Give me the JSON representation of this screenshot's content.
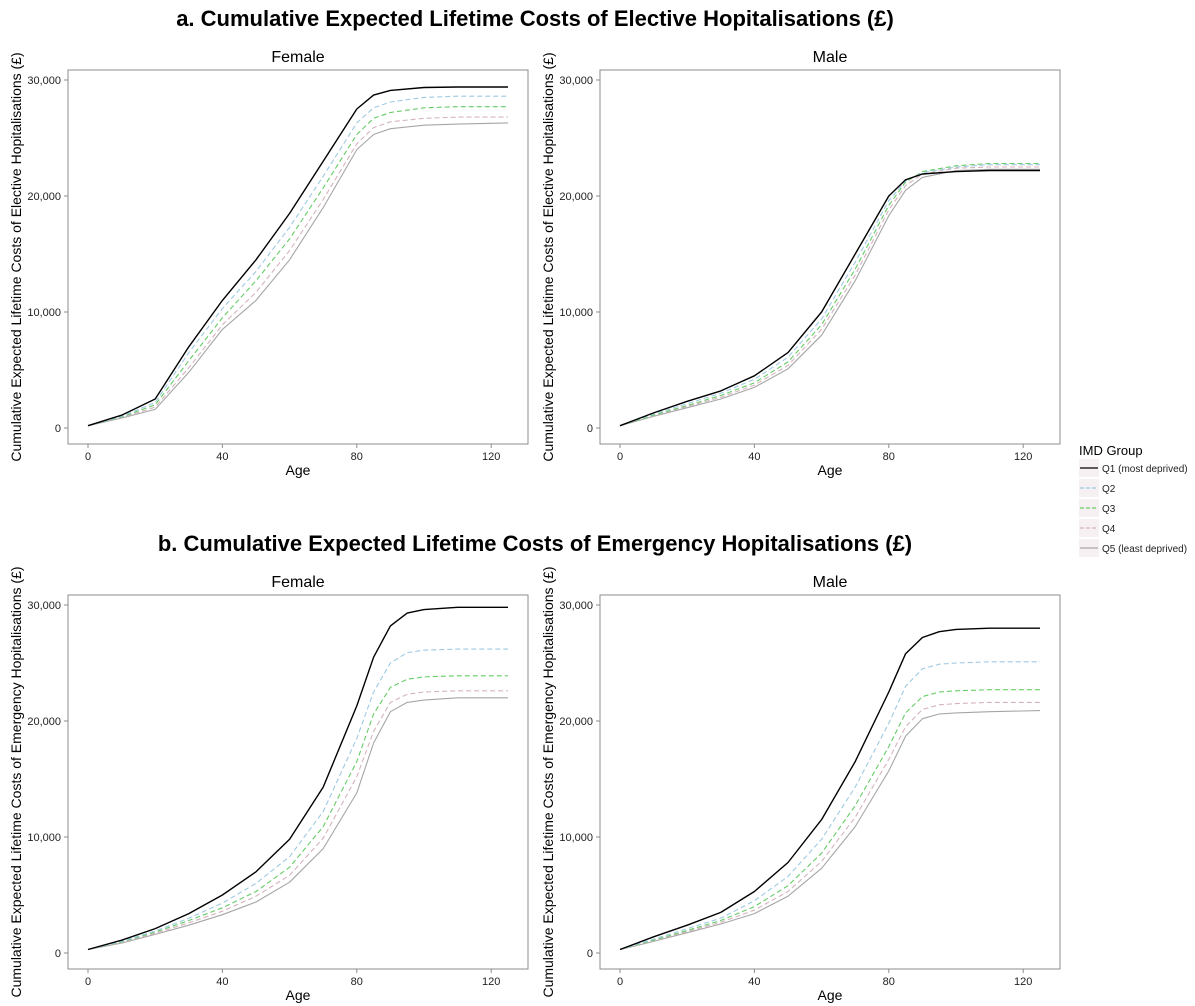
{
  "figure": {
    "title_a": "a. Cumulative Expected Lifetime Costs of Elective Hopitalisations (£)",
    "title_b": "b. Cumulative Expected Lifetime Costs of Emergency Hopitalisations (£)"
  },
  "legend": {
    "title": "IMD Group",
    "items": [
      {
        "label": "Q1 (most deprived)",
        "color": "#000000",
        "dash": "solid"
      },
      {
        "label": "Q2",
        "color": "#9ecae1",
        "dash": "dashed"
      },
      {
        "label": "Q3",
        "color": "#66cc66",
        "dash": "dashed"
      },
      {
        "label": "Q4",
        "color": "#d4b3bd",
        "dash": "dashed"
      },
      {
        "label": "Q5 (least deprived)",
        "color": "#a6a6a6",
        "dash": "solid"
      }
    ]
  },
  "chart_data": [
    {
      "type": "line",
      "title": "Female",
      "panel_group": "a",
      "xlabel": "Age",
      "ylabel": "Cumulative Expected Lifetime Costs of Elective Hopitalisations (£)",
      "xlim": [
        0,
        125
      ],
      "ylim": [
        0,
        30000
      ],
      "xticks": [
        0,
        40,
        80,
        120
      ],
      "xtick_labels": [
        "0",
        "40",
        "80",
        "120"
      ],
      "yticks": [
        0,
        10000,
        20000,
        30000
      ],
      "ytick_labels": [
        "0",
        "10,000",
        "20,000",
        "30,000"
      ],
      "grid": false,
      "x": [
        0,
        10,
        20,
        30,
        40,
        50,
        60,
        70,
        80,
        85,
        90,
        100,
        110,
        125
      ],
      "series": [
        {
          "name": "Q1 (most deprived)",
          "values": [
            200,
            1100,
            2500,
            7000,
            11000,
            14500,
            18500,
            23000,
            27500,
            28700,
            29100,
            29350,
            29400,
            29400
          ]
        },
        {
          "name": "Q2",
          "values": [
            200,
            1000,
            2200,
            6500,
            10300,
            13500,
            17300,
            21700,
            26300,
            27600,
            28100,
            28500,
            28600,
            28600
          ]
        },
        {
          "name": "Q3",
          "values": [
            200,
            950,
            2000,
            5800,
            9500,
            12700,
            16300,
            20700,
            25300,
            26700,
            27200,
            27600,
            27700,
            27700
          ]
        },
        {
          "name": "Q4",
          "values": [
            200,
            900,
            1800,
            5200,
            8900,
            11700,
            15300,
            19700,
            24500,
            25900,
            26400,
            26700,
            26800,
            26800
          ]
        },
        {
          "name": "Q5 (least deprived)",
          "values": [
            200,
            850,
            1600,
            4800,
            8500,
            11000,
            14500,
            19000,
            24000,
            25300,
            25800,
            26100,
            26200,
            26300
          ]
        }
      ]
    },
    {
      "type": "line",
      "title": "Male",
      "panel_group": "a",
      "xlabel": "Age",
      "ylabel": "Cumulative Expected Lifetime Costs of Elective Hopitalisations (£)",
      "xlim": [
        0,
        125
      ],
      "ylim": [
        0,
        30000
      ],
      "xticks": [
        0,
        40,
        80,
        120
      ],
      "xtick_labels": [
        "0",
        "40",
        "80",
        "120"
      ],
      "yticks": [
        0,
        10000,
        20000,
        30000
      ],
      "ytick_labels": [
        "0",
        "10,000",
        "20,000",
        "30,000"
      ],
      "grid": false,
      "x": [
        0,
        10,
        20,
        30,
        40,
        50,
        60,
        70,
        80,
        85,
        90,
        100,
        110,
        125
      ],
      "series": [
        {
          "name": "Q1 (most deprived)",
          "values": [
            200,
            1300,
            2300,
            3200,
            4500,
            6500,
            10000,
            15000,
            20000,
            21400,
            21900,
            22100,
            22200,
            22200
          ]
        },
        {
          "name": "Q2",
          "values": [
            200,
            1200,
            2100,
            3000,
            4200,
            6100,
            9400,
            14300,
            19600,
            21300,
            22000,
            22500,
            22700,
            22700
          ]
        },
        {
          "name": "Q3",
          "values": [
            200,
            1100,
            1950,
            2800,
            3900,
            5700,
            8900,
            13700,
            19200,
            21200,
            22100,
            22600,
            22800,
            22800
          ]
        },
        {
          "name": "Q4",
          "values": [
            200,
            1050,
            1850,
            2650,
            3700,
            5400,
            8500,
            13200,
            18800,
            20900,
            21900,
            22400,
            22500,
            22500
          ]
        },
        {
          "name": "Q5 (least deprived)",
          "values": [
            200,
            1000,
            1750,
            2500,
            3500,
            5100,
            8000,
            12700,
            18300,
            20500,
            21600,
            22200,
            22300,
            22300
          ]
        }
      ]
    },
    {
      "type": "line",
      "title": "Female",
      "panel_group": "b",
      "xlabel": "Age",
      "ylabel": "Cumulative Expected Lifetime Costs of Emergency Hopitalisations (£)",
      "xlim": [
        0,
        125
      ],
      "ylim": [
        0,
        30000
      ],
      "xticks": [
        0,
        40,
        80,
        120
      ],
      "xtick_labels": [
        "0",
        "40",
        "80",
        "120"
      ],
      "yticks": [
        0,
        10000,
        20000,
        30000
      ],
      "ytick_labels": [
        "0",
        "10,000",
        "20,000",
        "30,000"
      ],
      "grid": false,
      "x": [
        0,
        10,
        20,
        30,
        40,
        50,
        60,
        70,
        80,
        85,
        90,
        95,
        100,
        110,
        125
      ],
      "series": [
        {
          "name": "Q1 (most deprived)",
          "values": [
            300,
            1100,
            2100,
            3400,
            5000,
            7000,
            9800,
            14300,
            21300,
            25500,
            28200,
            29300,
            29600,
            29800,
            29800
          ]
        },
        {
          "name": "Q2",
          "values": [
            300,
            1000,
            1900,
            3000,
            4300,
            6000,
            8300,
            12200,
            18500,
            22500,
            25000,
            25900,
            26100,
            26200,
            26200
          ]
        },
        {
          "name": "Q3",
          "values": [
            300,
            950,
            1800,
            2800,
            3900,
            5300,
            7400,
            10900,
            16500,
            20600,
            22900,
            23600,
            23800,
            23900,
            23900
          ]
        },
        {
          "name": "Q4",
          "values": [
            300,
            900,
            1700,
            2600,
            3600,
            4900,
            6700,
            9900,
            15200,
            19100,
            21600,
            22300,
            22500,
            22600,
            22600
          ]
        },
        {
          "name": "Q5 (least deprived)",
          "values": [
            300,
            850,
            1600,
            2400,
            3300,
            4400,
            6100,
            9000,
            13800,
            18100,
            20800,
            21600,
            21800,
            22000,
            22000
          ]
        }
      ]
    },
    {
      "type": "line",
      "title": "Male",
      "panel_group": "b",
      "xlabel": "Age",
      "ylabel": "Cumulative Expected Lifetime Costs of Emergency Hopitalisations (£)",
      "xlim": [
        0,
        125
      ],
      "ylim": [
        0,
        30000
      ],
      "xticks": [
        0,
        40,
        80,
        120
      ],
      "xtick_labels": [
        "0",
        "40",
        "80",
        "120"
      ],
      "yticks": [
        0,
        10000,
        20000,
        30000
      ],
      "ytick_labels": [
        "0",
        "10,000",
        "20,000",
        "30,000"
      ],
      "grid": false,
      "x": [
        0,
        10,
        20,
        30,
        40,
        50,
        60,
        70,
        80,
        85,
        90,
        95,
        100,
        110,
        125
      ],
      "series": [
        {
          "name": "Q1 (most deprived)",
          "values": [
            300,
            1400,
            2400,
            3500,
            5300,
            7800,
            11500,
            16500,
            22500,
            25800,
            27200,
            27700,
            27900,
            28000,
            28000
          ]
        },
        {
          "name": "Q2",
          "values": [
            300,
            1200,
            2100,
            3000,
            4500,
            6600,
            9800,
            14300,
            19800,
            23000,
            24500,
            24900,
            25000,
            25100,
            25100
          ]
        },
        {
          "name": "Q3",
          "values": [
            300,
            1100,
            1950,
            2800,
            4000,
            5800,
            8600,
            12700,
            17800,
            20700,
            22100,
            22500,
            22600,
            22700,
            22700
          ]
        },
        {
          "name": "Q4",
          "values": [
            300,
            1050,
            1850,
            2650,
            3700,
            5300,
            7900,
            11700,
            16700,
            19500,
            21000,
            21400,
            21500,
            21600,
            21600
          ]
        },
        {
          "name": "Q5 (least deprived)",
          "values": [
            300,
            1000,
            1750,
            2500,
            3400,
            4900,
            7300,
            10900,
            15700,
            18700,
            20200,
            20600,
            20700,
            20800,
            20900
          ]
        }
      ]
    }
  ]
}
